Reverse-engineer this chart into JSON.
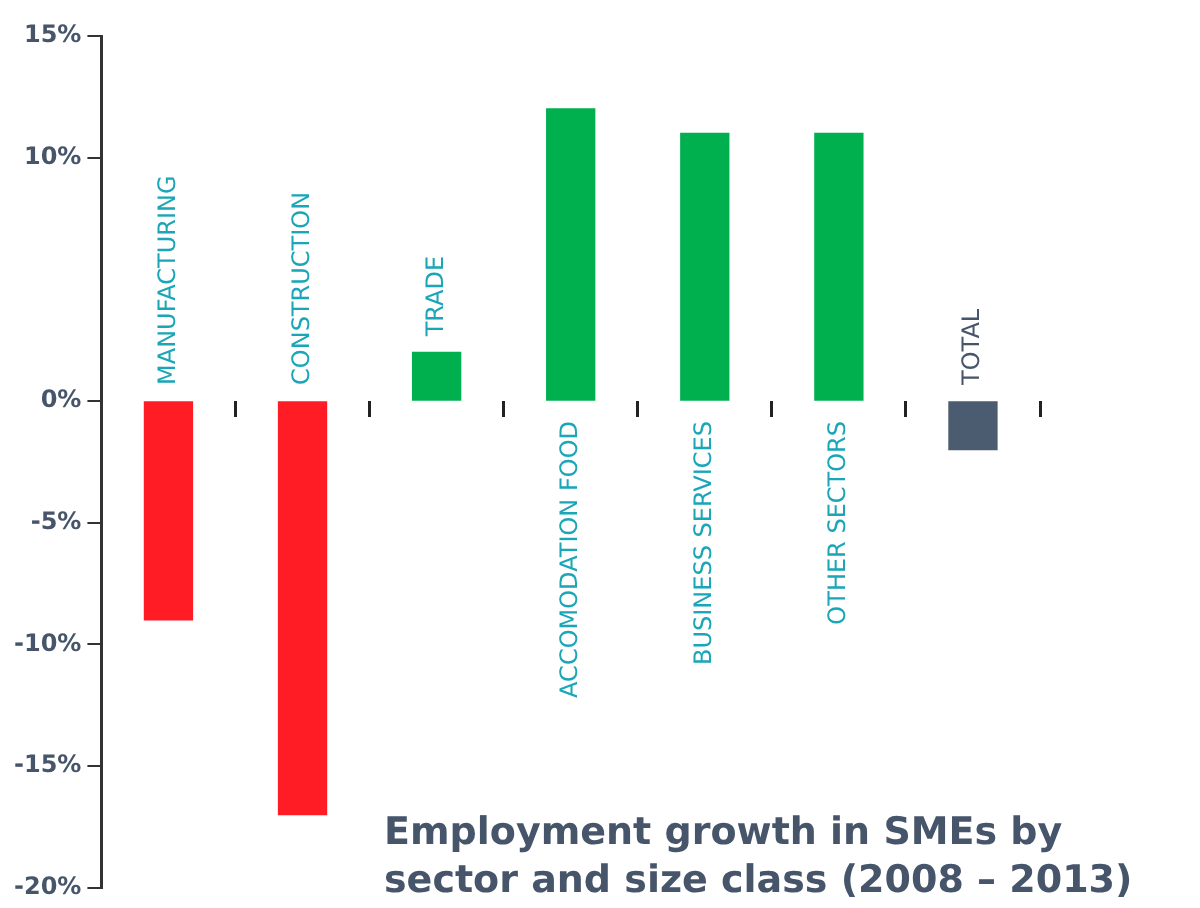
{
  "chart_data": {
    "type": "bar",
    "title": "Employment growth in SMEs by sector and size class (2008 – 2013)",
    "categories": [
      "MANUFACTURING",
      "CONSTRUCTION",
      "TRADE",
      "ACCOMODATION FOOD",
      "BUSINESS SERVICES",
      "OTHER SECTORS",
      "TOTAL"
    ],
    "values": [
      -9,
      -17,
      2,
      12,
      11,
      11,
      -2
    ],
    "colors": [
      "#ff1c25",
      "#ff1c25",
      "#00b04f",
      "#00b04f",
      "#00b04f",
      "#00b04f",
      "#4b5b70"
    ],
    "ylim": [
      -20,
      15
    ],
    "yticks": [
      {
        "value": 15,
        "label": "15%"
      },
      {
        "value": 10,
        "label": "10%"
      },
      {
        "value": 0,
        "label": "0%"
      },
      {
        "value": -5,
        "label": "-5%"
      },
      {
        "value": -10,
        "label": "-10%"
      },
      {
        "value": -15,
        "label": "-15%"
      },
      {
        "value": -20,
        "label": "-20%"
      }
    ],
    "grid": false,
    "legend": false
  }
}
